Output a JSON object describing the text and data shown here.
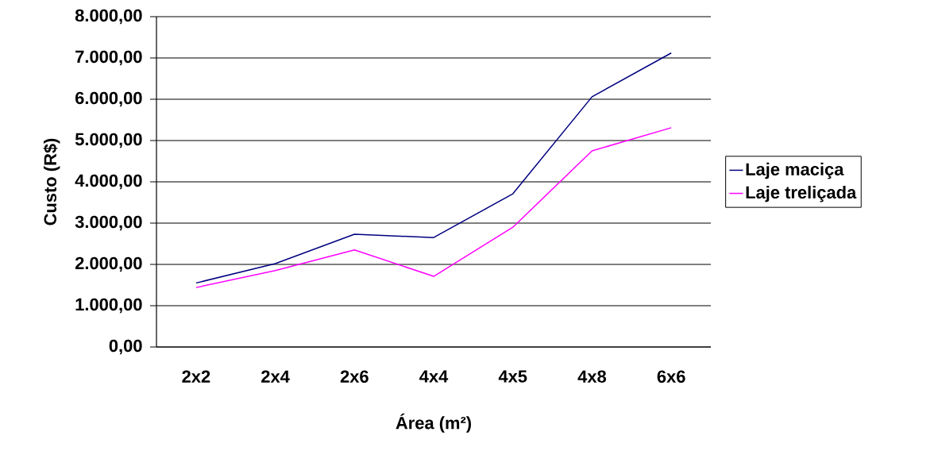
{
  "chart_data": {
    "type": "line",
    "xlabel": "Área (m²)",
    "ylabel": "Custo (R$)",
    "categories": [
      "2x2",
      "2x4",
      "2x6",
      "4x4",
      "4x5",
      "4x8",
      "6x6"
    ],
    "series": [
      {
        "name": "Laje maciça",
        "color": "#000080",
        "values": [
          1550,
          2020,
          2730,
          2650,
          3710,
          6060,
          7120
        ]
      },
      {
        "name": "Laje treliçada",
        "color": "#ff00ff",
        "values": [
          1440,
          1850,
          2350,
          1710,
          2900,
          4750,
          5310
        ]
      }
    ],
    "ylim": [
      0,
      8000
    ],
    "yticks": [
      {
        "value": 0,
        "label": "0,00"
      },
      {
        "value": 1000,
        "label": "1.000,00"
      },
      {
        "value": 2000,
        "label": "2.000,00"
      },
      {
        "value": 3000,
        "label": "3.000,00"
      },
      {
        "value": 4000,
        "label": "4.000,00"
      },
      {
        "value": 5000,
        "label": "5.000,00"
      },
      {
        "value": 6000,
        "label": "6.000,00"
      },
      {
        "value": 7000,
        "label": "7.000,00"
      },
      {
        "value": 8000,
        "label": "8.000,00"
      }
    ],
    "grid": "y",
    "legend": "right",
    "marker": "none",
    "line_style": "solid"
  }
}
